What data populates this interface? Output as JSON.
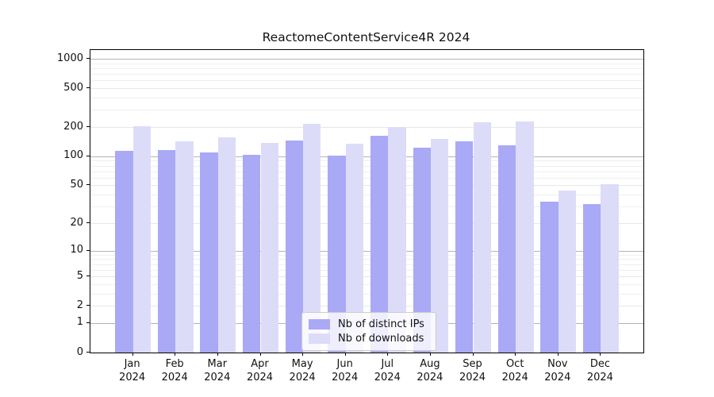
{
  "title": "ReactomeContentService4R 2024",
  "colors": {
    "bar_distinct_ips": "#a9a9f6",
    "bar_downloads": "#dcdcf9",
    "grid_decade": "#b4b4b4",
    "grid_light": "#e7e7e7",
    "axis": "#000000",
    "legend_border": "#cccccc"
  },
  "legend": {
    "items": [
      {
        "label": "Nb of distinct IPs",
        "color": "#a9a9f6"
      },
      {
        "label": "Nb of downloads",
        "color": "#dcdcf9"
      }
    ]
  },
  "chart_data": {
    "type": "bar",
    "title": "ReactomeContentService4R 2024",
    "categories": [
      "Jan 2024",
      "Feb 2024",
      "Mar 2024",
      "Apr 2024",
      "May 2024",
      "Jun 2024",
      "Jul 2024",
      "Aug 2024",
      "Sep 2024",
      "Oct 2024",
      "Nov 2024",
      "Dec 2024"
    ],
    "x_months": [
      "Jan",
      "Feb",
      "Mar",
      "Apr",
      "May",
      "Jun",
      "Jul",
      "Aug",
      "Sep",
      "Oct",
      "Nov",
      "Dec"
    ],
    "x_year": "2024",
    "series": [
      {
        "name": "Nb of distinct IPs",
        "color": "#a9a9f6",
        "values": [
          113,
          117,
          109,
          104,
          145,
          101,
          162,
          122,
          142,
          131,
          34,
          32
        ]
      },
      {
        "name": "Nb of downloads",
        "color": "#dcdcf9",
        "values": [
          205,
          143,
          158,
          137,
          217,
          134,
          201,
          151,
          226,
          228,
          44,
          51
        ]
      }
    ],
    "xlabel": "",
    "ylabel": "",
    "y_scale": "log10(count+1)",
    "ylim": [
      0,
      1000
    ],
    "y_ticks": [
      0,
      1,
      2,
      5,
      10,
      20,
      50,
      100,
      200,
      500,
      1000
    ],
    "y_decade_ticks": [
      1,
      10,
      100,
      1000
    ],
    "y_minor_ticks": [
      3,
      4,
      6,
      7,
      8,
      9,
      30,
      40,
      60,
      70,
      80,
      90,
      300,
      400,
      600,
      700,
      800,
      900
    ],
    "grid": true,
    "legend_position": "lower center"
  }
}
